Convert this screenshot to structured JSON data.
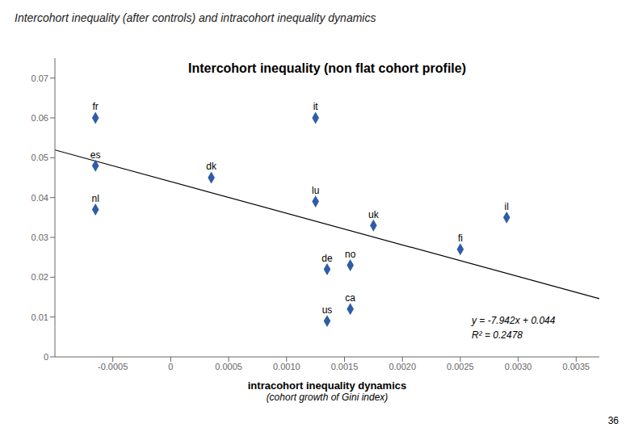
{
  "chart_data": {
    "type": "scatter",
    "title": "Intercohort inequality (after controls) and intracohort inequality dynamics",
    "subtitle": "Intercohort inequality (non flat cohort profile)",
    "x_label": "intracohort inequality dynamics",
    "annotations": [
      "y = -7.942x + 0.044",
      "R² = 0.2478",
      "(cohort growth of Gini index)",
      "36"
    ],
    "x": [
      -0.00065,
      -0.00065,
      -0.00065,
      0.00035,
      0.00125,
      0.00125,
      0.00135,
      0.00135,
      0.00155,
      0.00155,
      0.00175,
      0.0025,
      0.0029
    ],
    "values": [
      0.06,
      0.048,
      0.037,
      0.045,
      0.06,
      0.039,
      0.022,
      0.009,
      0.023,
      0.012,
      0.033,
      0.027,
      0.035
    ],
    "point_labels": [
      "fr",
      "es",
      "nl",
      "dk",
      "it",
      "lu",
      "de",
      "us",
      "no",
      "ca",
      "uk",
      "fi",
      "il"
    ],
    "color": "#2E5DA6",
    "marker": "diamond",
    "trendline": {
      "x": [
        -0.001,
        0.0037
      ],
      "y": [
        0.051942,
        0.0146146
      ],
      "color": "#000000"
    },
    "xlim": [
      -0.001,
      0.0037
    ],
    "ylim": [
      0,
      0.075
    ],
    "xticks": [
      -0.0005,
      0,
      0.0005,
      {
        "value": 0.001,
        "label": "0.0010"
      },
      0.0015,
      {
        "value": 0.002,
        "label": "0.0020"
      },
      0.0025,
      {
        "value": 0.003,
        "label": "0.0030"
      },
      0.0035
    ],
    "yticks": [
      0,
      0.01,
      0.02,
      0.03,
      0.04,
      0.05,
      0.06,
      0.07
    ],
    "grid": false
  }
}
